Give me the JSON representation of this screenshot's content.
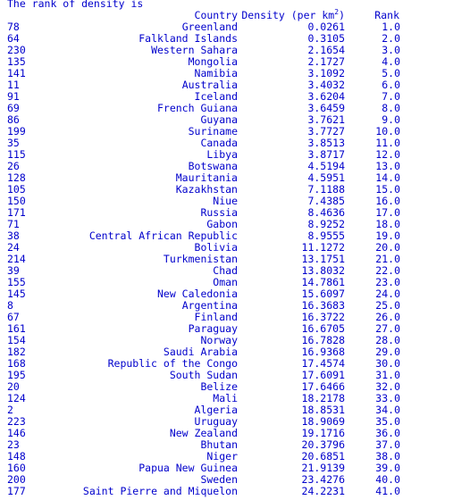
{
  "console": {
    "intro": "The rank of density is",
    "headers": {
      "country": "Country",
      "density_prefix": "Density (per km",
      "density_sup": "2",
      "density_suffix": ")",
      "rank": "Rank"
    },
    "rows": [
      {
        "idx": "78",
        "country": "Greenland",
        "density": "0.0261",
        "rank": "1.0"
      },
      {
        "idx": "64",
        "country": "Falkland Islands",
        "density": "0.3105",
        "rank": "2.0"
      },
      {
        "idx": "230",
        "country": "Western Sahara",
        "density": "2.1654",
        "rank": "3.0"
      },
      {
        "idx": "135",
        "country": "Mongolia",
        "density": "2.1727",
        "rank": "4.0"
      },
      {
        "idx": "141",
        "country": "Namibia",
        "density": "3.1092",
        "rank": "5.0"
      },
      {
        "idx": "11",
        "country": "Australia",
        "density": "3.4032",
        "rank": "6.0"
      },
      {
        "idx": "91",
        "country": "Iceland",
        "density": "3.6204",
        "rank": "7.0"
      },
      {
        "idx": "69",
        "country": "French Guiana",
        "density": "3.6459",
        "rank": "8.0"
      },
      {
        "idx": "86",
        "country": "Guyana",
        "density": "3.7621",
        "rank": "9.0"
      },
      {
        "idx": "199",
        "country": "Suriname",
        "density": "3.7727",
        "rank": "10.0"
      },
      {
        "idx": "35",
        "country": "Canada",
        "density": "3.8513",
        "rank": "11.0"
      },
      {
        "idx": "115",
        "country": "Libya",
        "density": "3.8717",
        "rank": "12.0"
      },
      {
        "idx": "26",
        "country": "Botswana",
        "density": "4.5194",
        "rank": "13.0"
      },
      {
        "idx": "128",
        "country": "Mauritania",
        "density": "4.5951",
        "rank": "14.0"
      },
      {
        "idx": "105",
        "country": "Kazakhstan",
        "density": "7.1188",
        "rank": "15.0"
      },
      {
        "idx": "150",
        "country": "Niue",
        "density": "7.4385",
        "rank": "16.0"
      },
      {
        "idx": "171",
        "country": "Russia",
        "density": "8.4636",
        "rank": "17.0"
      },
      {
        "idx": "71",
        "country": "Gabon",
        "density": "8.9252",
        "rank": "18.0"
      },
      {
        "idx": "38",
        "country": "Central African Republic",
        "density": "8.9555",
        "rank": "19.0"
      },
      {
        "idx": "24",
        "country": "Bolivia",
        "density": "11.1272",
        "rank": "20.0"
      },
      {
        "idx": "214",
        "country": "Turkmenistan",
        "density": "13.1751",
        "rank": "21.0"
      },
      {
        "idx": "39",
        "country": "Chad",
        "density": "13.8032",
        "rank": "22.0"
      },
      {
        "idx": "155",
        "country": "Oman",
        "density": "14.7861",
        "rank": "23.0"
      },
      {
        "idx": "145",
        "country": "New Caledonia",
        "density": "15.6097",
        "rank": "24.0"
      },
      {
        "idx": "8",
        "country": "Argentina",
        "density": "16.3683",
        "rank": "25.0"
      },
      {
        "idx": "67",
        "country": "Finland",
        "density": "16.3722",
        "rank": "26.0"
      },
      {
        "idx": "161",
        "country": "Paraguay",
        "density": "16.6705",
        "rank": "27.0"
      },
      {
        "idx": "154",
        "country": "Norway",
        "density": "16.7828",
        "rank": "28.0"
      },
      {
        "idx": "182",
        "country": "Saudi Arabia",
        "density": "16.9368",
        "rank": "29.0"
      },
      {
        "idx": "168",
        "country": "Republic of the Congo",
        "density": "17.4574",
        "rank": "30.0"
      },
      {
        "idx": "195",
        "country": "South Sudan",
        "density": "17.6091",
        "rank": "31.0"
      },
      {
        "idx": "20",
        "country": "Belize",
        "density": "17.6466",
        "rank": "32.0"
      },
      {
        "idx": "124",
        "country": "Mali",
        "density": "18.2178",
        "rank": "33.0"
      },
      {
        "idx": "2",
        "country": "Algeria",
        "density": "18.8531",
        "rank": "34.0"
      },
      {
        "idx": "223",
        "country": "Uruguay",
        "density": "18.9069",
        "rank": "35.0"
      },
      {
        "idx": "146",
        "country": "New Zealand",
        "density": "19.1716",
        "rank": "36.0"
      },
      {
        "idx": "23",
        "country": "Bhutan",
        "density": "20.3796",
        "rank": "37.0"
      },
      {
        "idx": "148",
        "country": "Niger",
        "density": "20.6851",
        "rank": "38.0"
      },
      {
        "idx": "160",
        "country": "Papua New Guinea",
        "density": "21.9139",
        "rank": "39.0"
      },
      {
        "idx": "200",
        "country": "Sweden",
        "density": "23.4276",
        "rank": "40.0"
      },
      {
        "idx": "177",
        "country": "Saint Pierre and Miquelon",
        "density": "24.2231",
        "rank": "41.0"
      }
    ]
  }
}
